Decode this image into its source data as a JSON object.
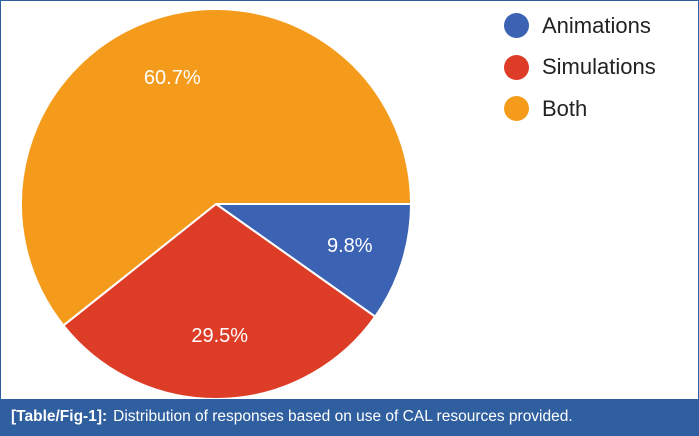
{
  "chart_data": {
    "type": "pie",
    "slices": [
      {
        "label": "Animations",
        "value": 9.8,
        "display": "9.8%",
        "color": "#3b62b3"
      },
      {
        "label": "Simulations",
        "value": 29.5,
        "display": "29.5%",
        "color": "#dd3c26"
      },
      {
        "label": "Both",
        "value": 60.7,
        "display": "60.7%",
        "color": "#f59b1c"
      }
    ],
    "legend_position": "top-right",
    "start_angle_deg": 90,
    "direction": "clockwise-from-right"
  },
  "legend": {
    "items": [
      {
        "label": "Animations",
        "color": "#3b62b3"
      },
      {
        "label": "Simulations",
        "color": "#dd3c26"
      },
      {
        "label": "Both",
        "color": "#f59b1c"
      }
    ]
  },
  "caption": {
    "tag": "[Table/Fig-1]:",
    "text": "Distribution of responses based on use of CAL resources provided."
  }
}
